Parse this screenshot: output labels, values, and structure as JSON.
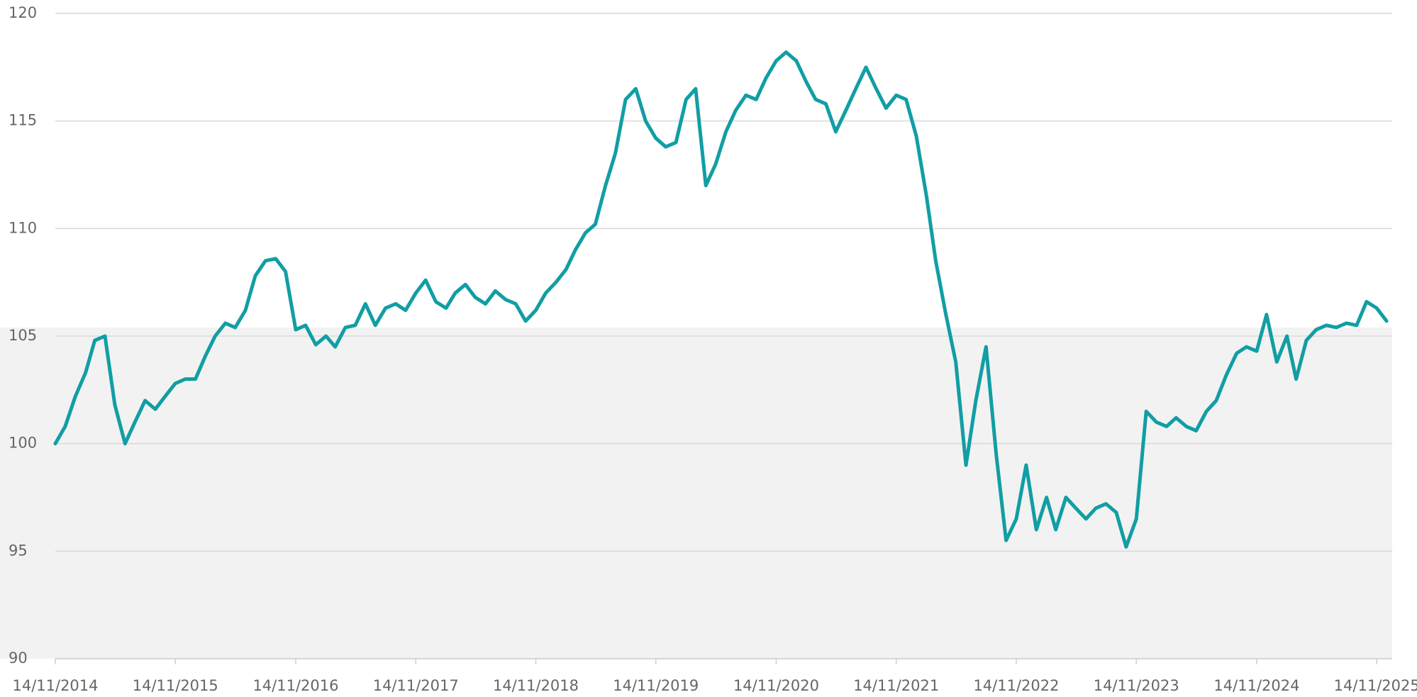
{
  "chart_data": {
    "type": "line",
    "x": [
      "14/11/2014",
      "14/12/2014",
      "14/01/2015",
      "14/02/2015",
      "14/03/2015",
      "14/04/2015",
      "14/05/2015",
      "14/06/2015",
      "14/07/2015",
      "14/08/2015",
      "14/09/2015",
      "14/10/2015",
      "14/11/2015",
      "14/12/2015",
      "14/01/2016",
      "14/02/2016",
      "14/03/2016",
      "14/04/2016",
      "14/05/2016",
      "14/06/2016",
      "14/07/2016",
      "14/08/2016",
      "14/09/2016",
      "14/10/2016",
      "14/11/2016",
      "14/12/2016",
      "14/01/2017",
      "14/02/2017",
      "14/03/2017",
      "14/04/2017",
      "14/05/2017",
      "14/06/2017",
      "14/07/2017",
      "14/08/2017",
      "14/09/2017",
      "14/10/2017",
      "14/11/2017",
      "14/12/2017",
      "14/01/2018",
      "14/02/2018",
      "14/03/2018",
      "14/04/2018",
      "14/05/2018",
      "14/06/2018",
      "14/07/2018",
      "14/08/2018",
      "14/09/2018",
      "14/10/2018",
      "14/11/2018",
      "14/12/2018",
      "14/01/2019",
      "14/02/2019",
      "14/03/2019",
      "14/04/2019",
      "14/05/2019",
      "14/06/2019",
      "14/07/2019",
      "14/08/2019",
      "14/09/2019",
      "14/10/2019",
      "14/11/2019",
      "14/12/2019",
      "14/01/2020",
      "14/02/2020",
      "14/03/2020",
      "14/04/2020",
      "14/05/2020",
      "14/06/2020",
      "14/07/2020",
      "14/08/2020",
      "14/09/2020",
      "14/10/2020",
      "14/11/2020",
      "14/12/2020",
      "14/01/2021",
      "14/02/2021",
      "14/03/2021",
      "14/04/2021",
      "14/05/2021",
      "14/06/2021",
      "14/07/2021",
      "14/08/2021",
      "14/09/2021",
      "14/10/2021",
      "14/11/2021",
      "14/12/2021",
      "14/01/2022",
      "14/02/2022",
      "14/03/2022",
      "14/04/2022",
      "14/05/2022",
      "14/06/2022",
      "14/07/2022",
      "14/08/2022",
      "14/09/2022",
      "14/10/2022",
      "14/11/2022",
      "14/12/2022",
      "14/01/2023",
      "14/02/2023",
      "14/03/2023",
      "14/04/2023",
      "14/05/2023",
      "14/06/2023",
      "14/07/2023",
      "14/08/2023",
      "14/09/2023",
      "14/10/2023",
      "14/11/2023",
      "14/12/2023",
      "14/01/2024",
      "14/02/2024",
      "14/03/2024",
      "14/04/2024",
      "14/05/2024",
      "14/06/2024",
      "14/07/2024",
      "14/08/2024",
      "14/09/2024",
      "14/10/2024",
      "14/11/2024",
      "14/12/2024",
      "14/01/2025",
      "14/02/2025",
      "14/03/2025",
      "14/04/2025",
      "14/05/2025",
      "14/06/2025",
      "14/07/2025",
      "14/08/2025",
      "14/09/2025",
      "14/10/2025",
      "14/11/2025",
      "14/12/2025"
    ],
    "series": [
      {
        "color": "#119ea4",
        "values": [
          100.0,
          100.8,
          102.2,
          103.3,
          104.8,
          105.0,
          101.8,
          100.0,
          101.0,
          102.0,
          101.6,
          102.2,
          102.8,
          103.0,
          103.0,
          104.1,
          105.0,
          105.6,
          105.4,
          106.2,
          107.8,
          108.5,
          108.6,
          108.0,
          105.3,
          105.5,
          104.6,
          105.0,
          104.5,
          105.4,
          105.5,
          106.5,
          105.5,
          106.3,
          106.5,
          106.2,
          107.0,
          107.6,
          106.6,
          106.3,
          107.0,
          107.4,
          106.8,
          106.5,
          107.1,
          106.7,
          106.5,
          105.7,
          106.2,
          107.0,
          107.5,
          108.1,
          109.0,
          109.8,
          110.2,
          112.0,
          113.5,
          116.0,
          116.5,
          115.0,
          114.2,
          113.8,
          114.0,
          116.0,
          116.5,
          112.0,
          113.0,
          114.5,
          115.5,
          116.2,
          116.0,
          117.0,
          117.8,
          118.2,
          117.8,
          116.8,
          116.0,
          115.8,
          114.5,
          115.5,
          116.5,
          117.5,
          116.5,
          115.6,
          116.2,
          116.0,
          114.3,
          111.5,
          108.5,
          106.0,
          103.8,
          99.0,
          102.0,
          104.5,
          99.5,
          95.5,
          96.5,
          99.0,
          96.0,
          97.5,
          96.0,
          97.5,
          97.0,
          96.5,
          97.0,
          97.2,
          96.8,
          95.2,
          96.5,
          101.5,
          101.0,
          100.8,
          101.2,
          100.8,
          100.6,
          101.5,
          102.0,
          103.2,
          104.2,
          104.5,
          104.3,
          106.0,
          103.8,
          105.0,
          103.0,
          104.8,
          105.3,
          105.5,
          105.4,
          105.6,
          105.5,
          106.6,
          106.3,
          105.7
        ]
      }
    ],
    "xlim": [
      "14/11/2014",
      "31/12/2025"
    ],
    "xticks": [
      "14/11/2014",
      "14/11/2015",
      "14/11/2016",
      "14/11/2017",
      "14/11/2018",
      "14/11/2019",
      "14/11/2020",
      "14/11/2021",
      "14/11/2022",
      "14/11/2023",
      "14/11/2024",
      "14/11/2025"
    ],
    "ylim": [
      90,
      120
    ],
    "yticks": [
      90,
      95,
      100,
      105,
      110,
      115,
      120
    ],
    "grid": true,
    "shaded_band": {
      "from": 90,
      "to": 105.4,
      "color": "#f2f2f2"
    }
  }
}
